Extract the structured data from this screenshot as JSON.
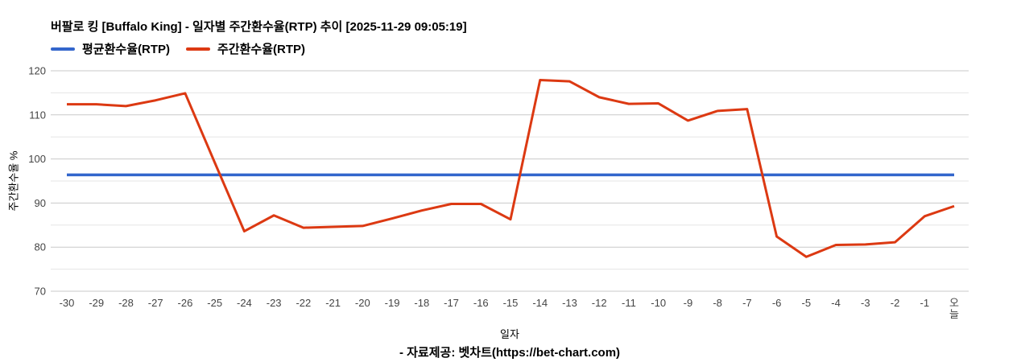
{
  "header": {
    "title": "버팔로 킹 [Buffalo King] - 일자별 주간환수율(RTP) 추이 [2025-11-29 09:05:19]"
  },
  "legend": {
    "items": [
      {
        "label": "평균환수율(RTP)",
        "color": "#3366cc"
      },
      {
        "label": "주간환수율(RTP)",
        "color": "#dc3912"
      }
    ]
  },
  "footer": {
    "credit": "- 자료제공: 벳차트(https://bet-chart.com)"
  },
  "chart_data": {
    "type": "line",
    "title": "버팔로 킹 [Buffalo King] - 일자별 주간환수율(RTP) 추이 [2025-11-29 09:05:19]",
    "xlabel": "일자",
    "ylabel": "주간환수율 %",
    "ylim": [
      70,
      120
    ],
    "y_major_ticks": [
      70,
      80,
      90,
      100,
      110,
      120
    ],
    "y_minor_ticks": [
      75,
      85,
      95,
      105,
      115
    ],
    "grid": true,
    "legend_position": "top-left",
    "categories": [
      "-30",
      "-29",
      "-28",
      "-27",
      "-26",
      "-25",
      "-24",
      "-23",
      "-22",
      "-21",
      "-20",
      "-19",
      "-18",
      "-17",
      "-16",
      "-15",
      "-14",
      "-13",
      "-12",
      "-11",
      "-10",
      "-9",
      "-8",
      "-7",
      "-6",
      "-5",
      "-4",
      "-3",
      "-2",
      "-1",
      "오늘"
    ],
    "series": [
      {
        "name": "평균환수율(RTP)",
        "color": "#3366cc",
        "style": "constant",
        "value": 96.4
      },
      {
        "name": "주간환수율(RTP)",
        "color": "#dc3912",
        "style": "line",
        "values": [
          112.4,
          112.4,
          112.0,
          113.3,
          114.9,
          99.2,
          83.6,
          87.2,
          84.4,
          84.6,
          84.8,
          86.5,
          88.3,
          89.8,
          89.8,
          86.3,
          117.9,
          117.6,
          114.0,
          112.5,
          112.6,
          108.7,
          110.9,
          111.3,
          82.4,
          77.8,
          80.5,
          80.6,
          81.1,
          87.0,
          89.3
        ]
      }
    ],
    "colors": {
      "grid_major": "#c9c9c9",
      "grid_minor": "#e6e6e6",
      "tick_label": "#444444",
      "text": "#000000",
      "background": "#ffffff"
    }
  }
}
